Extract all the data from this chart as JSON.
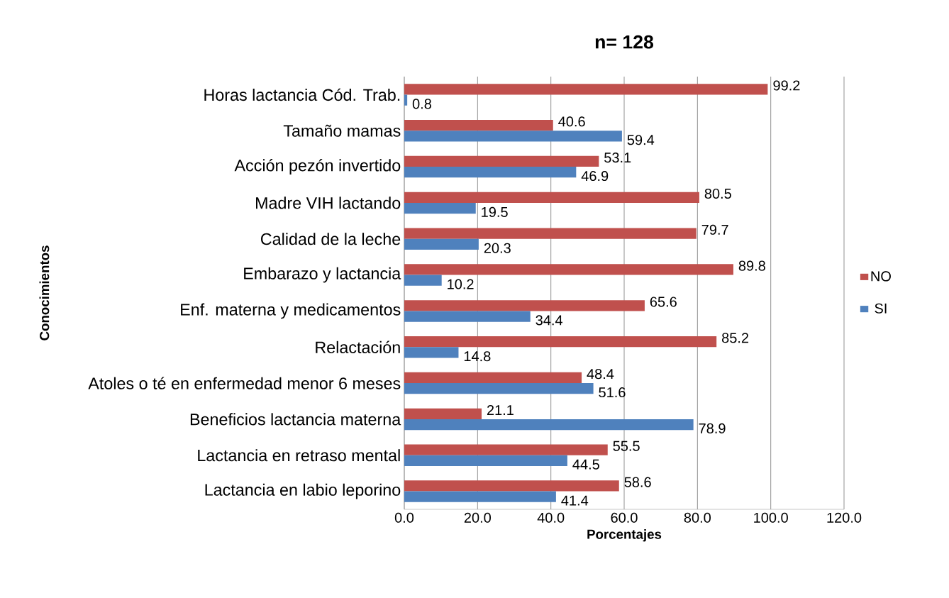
{
  "chart_data": {
    "type": "bar",
    "orientation": "horizontal",
    "title": "n= 128",
    "xlabel": "Porcentajes",
    "ylabel": "Conocimientos",
    "categories": [
      "Horas lactancia Cód. Trab.",
      "Tamaño mamas",
      "Acción pezón invertido",
      "Madre VIH lactando",
      "Calidad de la leche",
      "Embarazo y lactancia",
      "Enf. materna y medicamentos",
      "Relactación",
      "Atoles o té en enfermedad menor 6 meses",
      "Beneficios lactancia materna",
      "Lactancia en retraso mental",
      "Lactancia en labio leporino"
    ],
    "series": [
      {
        "name": "NO",
        "color": "#c0504d",
        "values": [
          99.2,
          40.6,
          53.1,
          80.5,
          79.7,
          89.8,
          65.6,
          85.2,
          48.4,
          21.1,
          55.5,
          58.6
        ]
      },
      {
        "name": "SI",
        "color": "#4f81bd",
        "values": [
          0.8,
          59.4,
          46.9,
          19.5,
          20.3,
          10.2,
          34.4,
          14.8,
          51.6,
          78.9,
          44.5,
          41.4
        ]
      }
    ],
    "xlim": [
      0,
      120
    ],
    "xticks": [
      {
        "value": 0,
        "label": "0.0"
      },
      {
        "value": 20,
        "label": "20.0"
      },
      {
        "value": 40,
        "label": "40.0"
      },
      {
        "value": 60,
        "label": "60.0"
      },
      {
        "value": 80,
        "label": "80.0"
      },
      {
        "value": 100,
        "label": "100.0"
      },
      {
        "value": 120,
        "label": "120.0"
      }
    ],
    "grid": "x",
    "legend": "right",
    "data_labels": true
  }
}
